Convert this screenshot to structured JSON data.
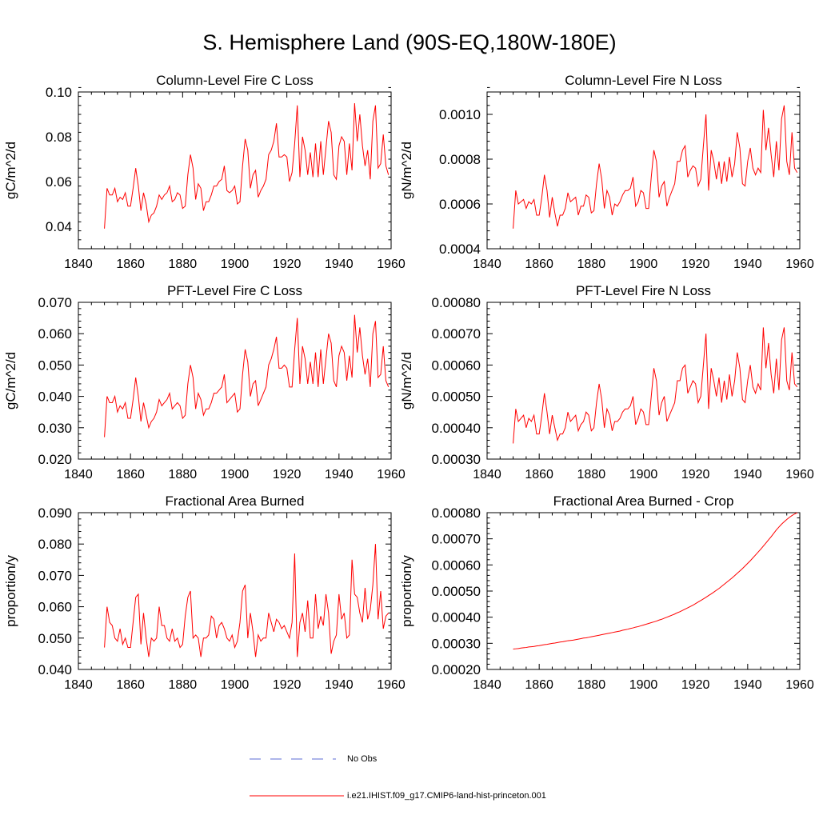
{
  "figure": {
    "title": "S. Hemisphere Land (90S-EQ,180W-180E)"
  },
  "legend": [
    {
      "label": "No Obs",
      "color": "#5b6bd6",
      "style": "dashed"
    },
    {
      "label": "i.e21.IHIST.f09_g17.CMIP6-land-hist-princeton.001",
      "color": "#ff0000",
      "style": "solid"
    }
  ],
  "colors": {
    "series": "#ff0000",
    "axis": "#000000"
  },
  "chart_data": [
    {
      "type": "line",
      "title": "Column-Level Fire C Loss",
      "ylabel": "gC/m^2/d",
      "xlim": [
        1840,
        1960
      ],
      "ylim": [
        0.03,
        0.1
      ],
      "xticks": [
        1840,
        1860,
        1880,
        1900,
        1920,
        1940,
        1960
      ],
      "yticks": [
        0.04,
        0.06,
        0.08,
        0.1
      ],
      "ytick_labels": [
        "0.04",
        "0.06",
        "0.08",
        "0.10"
      ],
      "x_start": 1850,
      "x_step": 1,
      "values": [
        0.039,
        0.057,
        0.054,
        0.054,
        0.057,
        0.051,
        0.053,
        0.052,
        0.055,
        0.049,
        0.049,
        0.057,
        0.066,
        0.058,
        0.047,
        0.055,
        0.05,
        0.042,
        0.045,
        0.046,
        0.049,
        0.054,
        0.052,
        0.054,
        0.055,
        0.058,
        0.051,
        0.052,
        0.055,
        0.054,
        0.048,
        0.049,
        0.063,
        0.072,
        0.066,
        0.052,
        0.059,
        0.057,
        0.047,
        0.051,
        0.051,
        0.054,
        0.058,
        0.058,
        0.06,
        0.061,
        0.067,
        0.056,
        0.055,
        0.056,
        0.058,
        0.05,
        0.051,
        0.067,
        0.079,
        0.074,
        0.057,
        0.063,
        0.065,
        0.053,
        0.056,
        0.058,
        0.061,
        0.072,
        0.074,
        0.078,
        0.086,
        0.071,
        0.071,
        0.072,
        0.071,
        0.06,
        0.064,
        0.077,
        0.094,
        0.062,
        0.08,
        0.074,
        0.063,
        0.073,
        0.062,
        0.077,
        0.062,
        0.078,
        0.063,
        0.075,
        0.087,
        0.082,
        0.063,
        0.061,
        0.076,
        0.08,
        0.078,
        0.063,
        0.077,
        0.065,
        0.095,
        0.078,
        0.09,
        0.076,
        0.067,
        0.074,
        0.061,
        0.087,
        0.094,
        0.066,
        0.068,
        0.081,
        0.067,
        0.063
      ]
    },
    {
      "type": "line",
      "title": "Column-Level Fire N Loss",
      "ylabel": "gN/m^2/d",
      "xlim": [
        1840,
        1960
      ],
      "ylim": [
        0.0004,
        0.0011
      ],
      "xticks": [
        1840,
        1860,
        1880,
        1900,
        1920,
        1940,
        1960
      ],
      "yticks": [
        0.0004,
        0.0006,
        0.0008,
        0.001
      ],
      "ytick_labels": [
        "0.0004",
        "0.0006",
        "0.0008",
        "0.0010"
      ],
      "x_start": 1850,
      "x_step": 1,
      "values": [
        0.00049,
        0.00066,
        0.0006,
        0.00061,
        0.00062,
        0.00058,
        0.00061,
        0.0006,
        0.00062,
        0.00055,
        0.00055,
        0.00063,
        0.00073,
        0.00066,
        0.00054,
        0.00063,
        0.00056,
        0.0005,
        0.00055,
        0.00055,
        0.00058,
        0.00065,
        0.00061,
        0.00062,
        0.00063,
        0.00055,
        0.00059,
        0.00059,
        0.00064,
        0.00063,
        0.00056,
        0.00057,
        0.00069,
        0.00078,
        0.00071,
        0.00058,
        0.00066,
        0.00063,
        0.00055,
        0.0006,
        0.00059,
        0.00061,
        0.00064,
        0.00066,
        0.00066,
        0.00067,
        0.00072,
        0.00059,
        0.00061,
        0.00066,
        0.00065,
        0.00058,
        0.00058,
        0.00072,
        0.00084,
        0.00079,
        0.00063,
        0.00068,
        0.0007,
        0.00059,
        0.00063,
        0.00066,
        0.00069,
        0.00079,
        0.00079,
        0.00084,
        0.00086,
        0.00072,
        0.00075,
        0.00077,
        0.00076,
        0.00068,
        0.00071,
        0.00086,
        0.001,
        0.00066,
        0.00084,
        0.00079,
        0.00071,
        0.00079,
        0.00069,
        0.00079,
        0.0007,
        0.00081,
        0.00072,
        0.00078,
        0.00092,
        0.00085,
        0.00069,
        0.00068,
        0.00079,
        0.00085,
        0.00076,
        0.00073,
        0.00076,
        0.00074,
        0.00102,
        0.00084,
        0.00094,
        0.00082,
        0.00072,
        0.00088,
        0.00075,
        0.00098,
        0.00104,
        0.00079,
        0.00073,
        0.00092,
        0.00076,
        0.00074
      ]
    },
    {
      "type": "line",
      "title": "PFT-Level Fire C Loss",
      "ylabel": "gC/m^2/d",
      "xlim": [
        1840,
        1960
      ],
      "ylim": [
        0.02,
        0.07
      ],
      "xticks": [
        1840,
        1860,
        1880,
        1900,
        1920,
        1940,
        1960
      ],
      "yticks": [
        0.02,
        0.03,
        0.04,
        0.05,
        0.06,
        0.07
      ],
      "ytick_labels": [
        "0.020",
        "0.030",
        "0.040",
        "0.050",
        "0.060",
        "0.070"
      ],
      "x_start": 1850,
      "x_step": 1,
      "values": [
        0.027,
        0.04,
        0.038,
        0.038,
        0.04,
        0.035,
        0.037,
        0.036,
        0.038,
        0.033,
        0.033,
        0.039,
        0.046,
        0.04,
        0.032,
        0.038,
        0.034,
        0.03,
        0.032,
        0.033,
        0.035,
        0.039,
        0.037,
        0.038,
        0.039,
        0.041,
        0.036,
        0.037,
        0.038,
        0.037,
        0.033,
        0.034,
        0.044,
        0.05,
        0.046,
        0.036,
        0.041,
        0.039,
        0.034,
        0.036,
        0.036,
        0.038,
        0.041,
        0.041,
        0.042,
        0.043,
        0.047,
        0.038,
        0.039,
        0.04,
        0.041,
        0.035,
        0.036,
        0.047,
        0.055,
        0.051,
        0.04,
        0.044,
        0.045,
        0.037,
        0.039,
        0.041,
        0.043,
        0.05,
        0.052,
        0.055,
        0.059,
        0.049,
        0.049,
        0.05,
        0.049,
        0.043,
        0.043,
        0.055,
        0.065,
        0.044,
        0.056,
        0.052,
        0.044,
        0.051,
        0.044,
        0.054,
        0.043,
        0.055,
        0.044,
        0.052,
        0.06,
        0.057,
        0.045,
        0.043,
        0.053,
        0.056,
        0.054,
        0.045,
        0.053,
        0.046,
        0.066,
        0.054,
        0.062,
        0.053,
        0.047,
        0.052,
        0.043,
        0.06,
        0.064,
        0.046,
        0.047,
        0.056,
        0.045,
        0.043
      ]
    },
    {
      "type": "line",
      "title": "PFT-Level Fire N Loss",
      "ylabel": "gN/m^2/d",
      "xlim": [
        1840,
        1960
      ],
      "ylim": [
        0.0003,
        0.0008
      ],
      "xticks": [
        1840,
        1860,
        1880,
        1900,
        1920,
        1940,
        1960
      ],
      "yticks": [
        0.0003,
        0.0004,
        0.0005,
        0.0006,
        0.0007,
        0.0008
      ],
      "ytick_labels": [
        "0.00030",
        "0.00040",
        "0.00050",
        "0.00060",
        "0.00070",
        "0.00080"
      ],
      "x_start": 1850,
      "x_step": 1,
      "values": [
        0.00035,
        0.00046,
        0.00042,
        0.00043,
        0.00044,
        0.0004,
        0.00043,
        0.00042,
        0.00044,
        0.00038,
        0.00038,
        0.00044,
        0.00051,
        0.00045,
        0.00038,
        0.00044,
        0.0004,
        0.00036,
        0.00038,
        0.00038,
        0.0004,
        0.00045,
        0.00042,
        0.00043,
        0.00044,
        0.00039,
        0.00041,
        0.00042,
        0.00045,
        0.00044,
        0.00039,
        0.0004,
        0.00048,
        0.00054,
        0.00049,
        0.0004,
        0.00046,
        0.00044,
        0.00039,
        0.00042,
        0.00042,
        0.00043,
        0.00045,
        0.00046,
        0.00046,
        0.00047,
        0.0005,
        0.00041,
        0.00043,
        0.00046,
        0.00045,
        0.00041,
        0.00041,
        0.0005,
        0.00059,
        0.00055,
        0.00044,
        0.00048,
        0.0005,
        0.00042,
        0.00044,
        0.00046,
        0.00048,
        0.00055,
        0.00055,
        0.00059,
        0.0006,
        0.00051,
        0.00053,
        0.00055,
        0.00054,
        0.00048,
        0.0005,
        0.0006,
        0.0007,
        0.00046,
        0.00059,
        0.00055,
        0.0005,
        0.00056,
        0.00048,
        0.00055,
        0.00049,
        0.00057,
        0.0005,
        0.00055,
        0.00064,
        0.00059,
        0.00049,
        0.00048,
        0.00055,
        0.0006,
        0.00053,
        0.00051,
        0.00054,
        0.00052,
        0.00072,
        0.00059,
        0.00067,
        0.00057,
        0.00051,
        0.00062,
        0.00052,
        0.00068,
        0.00072,
        0.00055,
        0.00052,
        0.00064,
        0.00054,
        0.00053
      ]
    },
    {
      "type": "line",
      "title": "Fractional Area Burned",
      "ylabel": "proportion/y",
      "xlim": [
        1840,
        1960
      ],
      "ylim": [
        0.04,
        0.09
      ],
      "xticks": [
        1840,
        1860,
        1880,
        1900,
        1920,
        1940,
        1960
      ],
      "yticks": [
        0.04,
        0.05,
        0.06,
        0.07,
        0.08,
        0.09
      ],
      "ytick_labels": [
        "0.040",
        "0.050",
        "0.060",
        "0.070",
        "0.080",
        "0.090"
      ],
      "x_start": 1850,
      "x_step": 1,
      "values": [
        0.047,
        0.06,
        0.055,
        0.054,
        0.05,
        0.049,
        0.053,
        0.048,
        0.05,
        0.047,
        0.047,
        0.055,
        0.063,
        0.064,
        0.048,
        0.058,
        0.05,
        0.044,
        0.05,
        0.049,
        0.05,
        0.06,
        0.054,
        0.054,
        0.05,
        0.049,
        0.053,
        0.049,
        0.05,
        0.047,
        0.048,
        0.057,
        0.063,
        0.065,
        0.05,
        0.051,
        0.05,
        0.044,
        0.05,
        0.05,
        0.051,
        0.057,
        0.056,
        0.05,
        0.054,
        0.055,
        0.053,
        0.05,
        0.049,
        0.051,
        0.047,
        0.049,
        0.055,
        0.065,
        0.067,
        0.05,
        0.058,
        0.052,
        0.044,
        0.051,
        0.049,
        0.05,
        0.05,
        0.058,
        0.055,
        0.052,
        0.056,
        0.055,
        0.053,
        0.054,
        0.052,
        0.05,
        0.055,
        0.077,
        0.044,
        0.055,
        0.058,
        0.052,
        0.062,
        0.05,
        0.05,
        0.064,
        0.053,
        0.057,
        0.054,
        0.064,
        0.058,
        0.045,
        0.049,
        0.051,
        0.064,
        0.056,
        0.058,
        0.05,
        0.051,
        0.075,
        0.064,
        0.063,
        0.058,
        0.055,
        0.066,
        0.056,
        0.059,
        0.067,
        0.08,
        0.056,
        0.065,
        0.053,
        0.057,
        0.058
      ]
    },
    {
      "type": "line",
      "title": "Fractional Area Burned - Crop",
      "ylabel": "proportion/y",
      "xlim": [
        1840,
        1960
      ],
      "ylim": [
        0.0002,
        0.0008
      ],
      "xticks": [
        1840,
        1860,
        1880,
        1900,
        1920,
        1940,
        1960
      ],
      "yticks": [
        0.0002,
        0.0003,
        0.0004,
        0.0005,
        0.0006,
        0.0007,
        0.0008
      ],
      "ytick_labels": [
        "0.00020",
        "0.00030",
        "0.00040",
        "0.00050",
        "0.00060",
        "0.00070",
        "0.00080"
      ],
      "x_start": 1850,
      "x_step": 1,
      "values": [
        0.000278,
        0.000279,
        0.00028,
        0.000282,
        0.000283,
        0.000284,
        0.000286,
        0.000287,
        0.000288,
        0.00029,
        0.000291,
        0.000293,
        0.000295,
        0.000296,
        0.000298,
        0.0003,
        0.000301,
        0.000303,
        0.000305,
        0.000306,
        0.000308,
        0.00031,
        0.000311,
        0.000312,
        0.000314,
        0.000316,
        0.000318,
        0.00032,
        0.000321,
        0.000323,
        0.000325,
        0.000327,
        0.000329,
        0.000331,
        0.000333,
        0.000335,
        0.000337,
        0.000339,
        0.000341,
        0.000343,
        0.000345,
        0.000347,
        0.00035,
        0.000352,
        0.000354,
        0.000357,
        0.000359,
        0.000362,
        0.000364,
        0.000367,
        0.00037,
        0.000373,
        0.000376,
        0.000379,
        0.000382,
        0.000385,
        0.000389,
        0.000392,
        0.000396,
        0.0004,
        0.000404,
        0.000408,
        0.000412,
        0.000417,
        0.000421,
        0.000426,
        0.000431,
        0.000436,
        0.000441,
        0.000446,
        0.000452,
        0.000458,
        0.000464,
        0.00047,
        0.000476,
        0.000483,
        0.000489,
        0.000496,
        0.000503,
        0.00051,
        0.000518,
        0.000526,
        0.000534,
        0.000542,
        0.00055,
        0.000559,
        0.000568,
        0.000577,
        0.000586,
        0.000596,
        0.000606,
        0.000616,
        0.000627,
        0.000638,
        0.000649,
        0.00066,
        0.000672,
        0.000684,
        0.000696,
        0.000708,
        0.000721,
        0.000734,
        0.000745,
        0.000756,
        0.000765,
        0.000774,
        0.000782,
        0.000789,
        0.000795,
        0.0008
      ]
    }
  ]
}
